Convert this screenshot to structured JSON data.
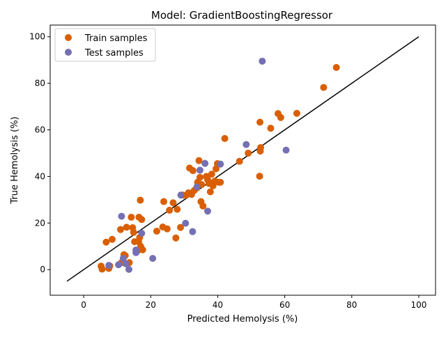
{
  "chart_data": {
    "type": "scatter",
    "title": "Model: GradientBoostingRegressor",
    "xlabel": "Predicted Hemolysis (%)",
    "ylabel": "True Hemolysis (%)",
    "xlim": [
      -10,
      105
    ],
    "ylim": [
      -11,
      105
    ],
    "xticks": [
      0,
      20,
      40,
      60,
      80,
      100
    ],
    "yticks": [
      0,
      20,
      40,
      60,
      80,
      100
    ],
    "grid": false,
    "legend_position": "top-left",
    "reference_line": {
      "from": [
        -5,
        -5
      ],
      "to": [
        100,
        100
      ],
      "color": "#000000"
    },
    "series": [
      {
        "name": "Train samples",
        "color": "#d95f02",
        "points": [
          [
            5.2,
            1.5
          ],
          [
            5.5,
            0.2
          ],
          [
            6.7,
            11.8
          ],
          [
            7.5,
            0.5
          ],
          [
            7.8,
            1.6
          ],
          [
            8.5,
            13.0
          ],
          [
            11.0,
            17.2
          ],
          [
            11.3,
            3.0
          ],
          [
            12.0,
            6.4
          ],
          [
            12.4,
            6.0
          ],
          [
            12.8,
            18.2
          ],
          [
            13.6,
            3.0
          ],
          [
            14.2,
            22.5
          ],
          [
            14.6,
            18.0
          ],
          [
            14.9,
            16.0
          ],
          [
            15.2,
            12.0
          ],
          [
            16.0,
            8.0
          ],
          [
            16.4,
            12.0
          ],
          [
            16.5,
            22.5
          ],
          [
            16.7,
            13.8
          ],
          [
            16.9,
            29.8
          ],
          [
            17.0,
            10.0
          ],
          [
            17.3,
            21.5
          ],
          [
            17.6,
            8.5
          ],
          [
            21.8,
            16.5
          ],
          [
            23.6,
            18.3
          ],
          [
            23.9,
            29.2
          ],
          [
            24.9,
            17.5
          ],
          [
            25.6,
            25.5
          ],
          [
            26.7,
            28.7
          ],
          [
            27.5,
            13.6
          ],
          [
            27.9,
            25.9
          ],
          [
            28.9,
            18.1
          ],
          [
            29.5,
            32.0
          ],
          [
            30.6,
            32.0
          ],
          [
            31.3,
            33.0
          ],
          [
            31.6,
            43.6
          ],
          [
            32.2,
            32.3
          ],
          [
            32.6,
            42.5
          ],
          [
            33.0,
            34.0
          ],
          [
            33.8,
            35.1
          ],
          [
            34.0,
            37.5
          ],
          [
            34.4,
            46.8
          ],
          [
            34.7,
            39.6
          ],
          [
            35.0,
            29.2
          ],
          [
            35.2,
            36.5
          ],
          [
            35.6,
            27.3
          ],
          [
            36.6,
            40.0
          ],
          [
            37.0,
            38.6
          ],
          [
            37.4,
            37.0
          ],
          [
            37.8,
            33.4
          ],
          [
            38.2,
            41.0
          ],
          [
            38.6,
            36.0
          ],
          [
            39.1,
            38.0
          ],
          [
            39.5,
            43.3
          ],
          [
            39.9,
            45.5
          ],
          [
            40.3,
            37.5
          ],
          [
            40.8,
            37.5
          ],
          [
            42.1,
            56.3
          ],
          [
            46.5,
            46.5
          ],
          [
            49.1,
            50.0
          ],
          [
            52.5,
            40.1
          ],
          [
            52.6,
            63.3
          ],
          [
            52.7,
            50.9
          ],
          [
            52.8,
            52.4
          ],
          [
            55.8,
            60.7
          ],
          [
            58.0,
            67.0
          ],
          [
            58.8,
            65.3
          ],
          [
            63.6,
            67.1
          ],
          [
            71.6,
            78.2
          ],
          [
            75.4,
            86.8
          ]
        ]
      },
      {
        "name": "Test samples",
        "color": "#7570b3",
        "points": [
          [
            7.5,
            1.8
          ],
          [
            10.4,
            2.1
          ],
          [
            11.3,
            22.9
          ],
          [
            11.8,
            4.8
          ],
          [
            12.6,
            2.5
          ],
          [
            13.5,
            0.1
          ],
          [
            15.6,
            8.4
          ],
          [
            15.6,
            7.3
          ],
          [
            17.3,
            15.6
          ],
          [
            20.6,
            4.8
          ],
          [
            29.0,
            32.0
          ],
          [
            30.4,
            19.9
          ],
          [
            32.5,
            16.3
          ],
          [
            33.8,
            35.5
          ],
          [
            34.7,
            42.7
          ],
          [
            36.2,
            45.6
          ],
          [
            37.0,
            25.1
          ],
          [
            40.8,
            45.3
          ],
          [
            48.5,
            53.7
          ],
          [
            53.3,
            89.5
          ],
          [
            60.4,
            51.3
          ]
        ]
      }
    ]
  }
}
